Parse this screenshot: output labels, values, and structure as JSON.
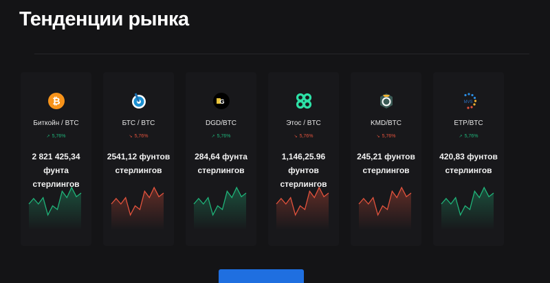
{
  "title": "Тенденции рынка",
  "colors": {
    "up": "#1fb57a",
    "down": "#e5533d",
    "button": "#1f6fe0"
  },
  "sparkline": [
    4,
    7,
    4,
    7.5,
    -2,
    3,
    1,
    11,
    7.5,
    13,
    8,
    10
  ],
  "cards": [
    {
      "icon": "bitcoin-icon",
      "name": "Биткойн / BTC",
      "change": "5,76%",
      "trend": "up",
      "price": "2 821 425,34 фунта стерлингов"
    },
    {
      "icon": "bts-icon",
      "name": "БТС / BTC",
      "change": "5,76%",
      "trend": "down",
      "price": "2541,12 фунтов стерлингов"
    },
    {
      "icon": "dgd-icon",
      "name": "DGD/BTC",
      "change": "5,76%",
      "trend": "up",
      "price": "284,64 фунта стерлингов"
    },
    {
      "icon": "ethos-icon",
      "name": "Этос / BTC",
      "change": "5,76%",
      "trend": "down",
      "price": "1,146,25.96 фунтов стерлингов"
    },
    {
      "icon": "kmd-icon",
      "name": "KMD/BTC",
      "change": "5,76%",
      "trend": "down",
      "price": "245,21 фунтов стерлингов"
    },
    {
      "icon": "etp-icon",
      "name": "ETP/BTC",
      "change": "5,76%",
      "trend": "up",
      "price": "420,83 фунтов стерлингов"
    }
  ]
}
